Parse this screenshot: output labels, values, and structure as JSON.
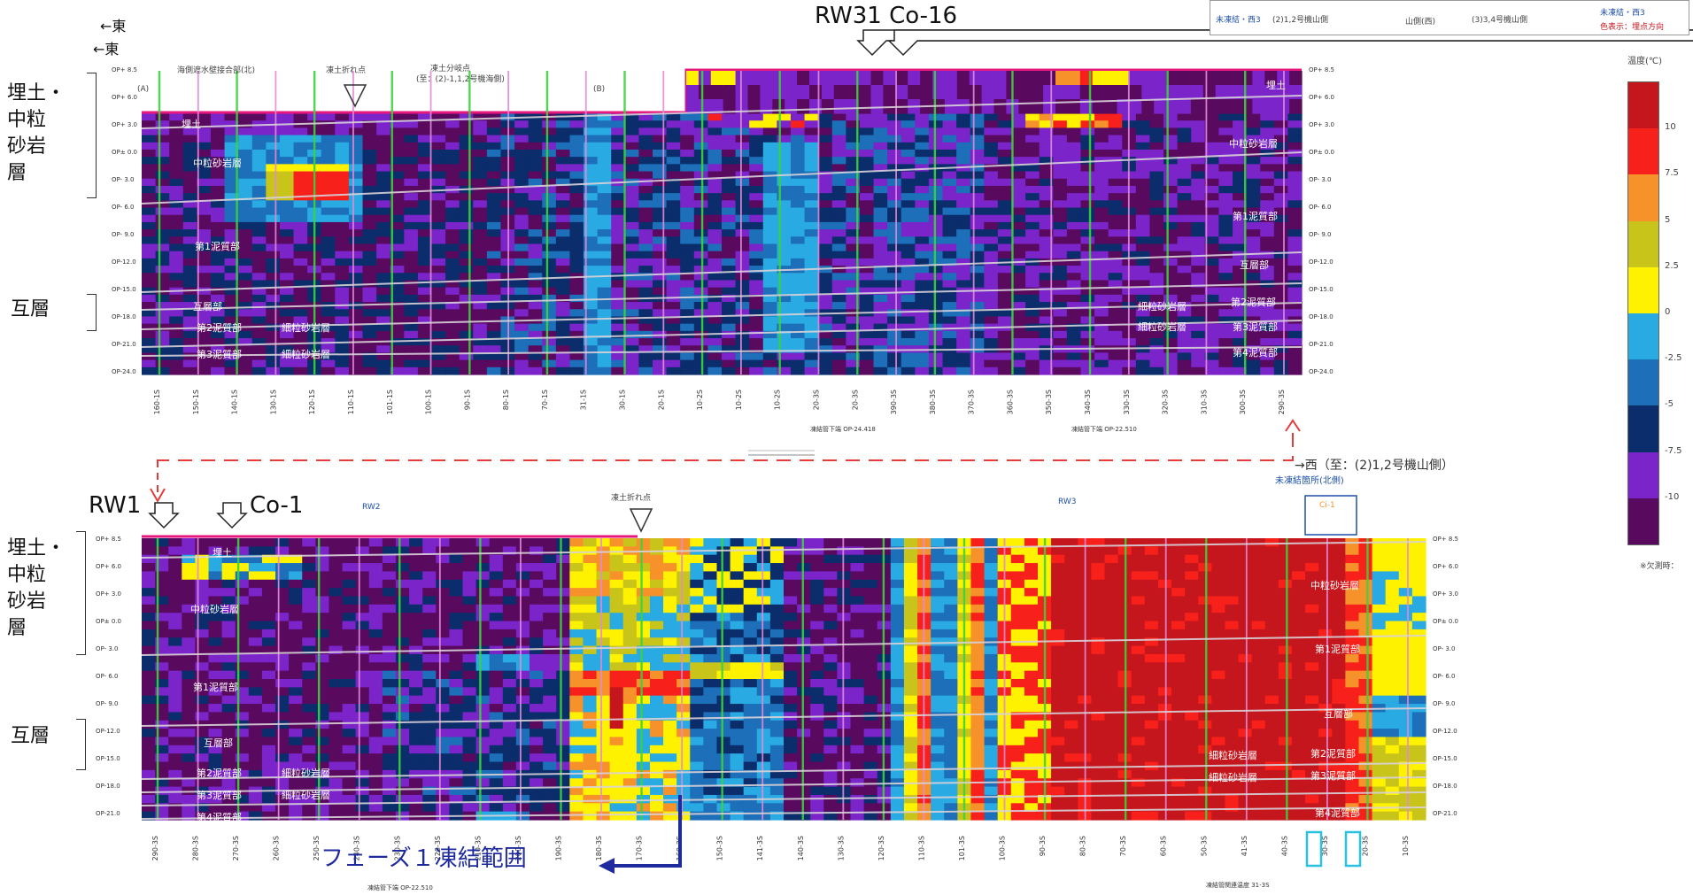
{
  "top": {
    "east_label_1": "←東",
    "east_label_2": "←東",
    "markers_label": "RW31 Co-16",
    "strata_left": [
      "埋土・",
      "中粒",
      "砂岩",
      "層"
    ],
    "alternation_label": "互層",
    "points": {
      "A": "(A)",
      "B": "(B)"
    },
    "annot_kaigan": "海側遮水壁接合部(北)",
    "annot_fill_break": "凍土折れ点",
    "annot_fill_branch": "凍土分岐点",
    "annot_fill_branch_sub": "(至：(2)-1,1,2号機海側)",
    "strata_in_panel": [
      "埋土",
      "中粒砂岩層",
      "第1泥質部",
      "互層部",
      "第2泥質部",
      "細粒砂岩層",
      "第3泥質部",
      "細粒砂岩層"
    ],
    "strata_right": [
      "埋土",
      "中粒砂岩層",
      "第1泥質部",
      "互層部",
      "細粒砂岩層",
      "第2泥質部",
      "細粒砂岩層",
      "第3泥質部",
      "第4泥質部"
    ],
    "depth_ticks": [
      "OP+ 8.5",
      "OP+ 6.0",
      "OP+ 3.0",
      "OP± 0.0",
      "OP- 3.0",
      "OP- 6.0",
      "OP- 9.0",
      "OP-12.0",
      "OP-15.0",
      "OP-18.0",
      "OP-21.0",
      "OP-24.0"
    ],
    "columns": [
      "160-1S",
      "150-1S",
      "140-1S",
      "130-1S",
      "120-1S",
      "110-1S",
      "101-1S",
      "100-1S",
      "90-1S",
      "80-1S",
      "70-1S",
      "31-1S",
      "30-1S",
      "20-1S",
      "10-2S",
      "10-2S",
      "10-2S",
      "20-3S",
      "20-3S",
      "390-3S",
      "380-3S",
      "370-3S",
      "360-3S",
      "350-3S",
      "340-3S",
      "330-3S",
      "320-3S",
      "310-3S",
      "300-3S",
      "290-3S"
    ],
    "bottom_notes": [
      "凍結管下端 OP-24.418",
      "凍結管下端 OP-22.510"
    ]
  },
  "bottom": {
    "rw1_label": "RW1",
    "co1_label": "Co-1",
    "west_label": "→西（至：(2)1,2号機山側）",
    "unfrozen_label": "未凍結箇所(北側)",
    "strata_left": [
      "埋土・",
      "中粒",
      "砂岩",
      "層"
    ],
    "alternation_label": "互層",
    "annot_fill_break": "凍土折れ点",
    "rw2": "RW2",
    "rw3": "RW3",
    "ci": "Ci-1",
    "strata_in_panel": [
      "埋土",
      "中粒砂岩層",
      "第1泥質部",
      "互層部",
      "第2泥質部",
      "細粒砂岩層",
      "第3泥質部",
      "細粒砂岩層",
      "第4泥質部"
    ],
    "strata_right": [
      "中粒砂岩層",
      "第1泥質部",
      "互層部",
      "細粒砂岩層",
      "第2泥質部",
      "細粒砂岩層",
      "第3泥質部",
      "第4泥質部"
    ],
    "depth_ticks": [
      "OP+ 8.5",
      "OP+ 6.0",
      "OP+ 3.0",
      "OP± 0.0",
      "OP- 3.0",
      "OP- 6.0",
      "OP- 9.0",
      "OP-12.0",
      "OP-15.0",
      "OP-18.0",
      "OP-21.0"
    ],
    "columns": [
      "290-3S",
      "280-3S",
      "270-3S",
      "260-3S",
      "250-3S",
      "240-3S",
      "230-3S",
      "220-3S",
      "210-3S",
      "200-3S",
      "190-3S",
      "180-3S",
      "170-3S",
      "160-3S",
      "150-3S",
      "141-3S",
      "140-3S",
      "130-3S",
      "120-3S",
      "110-3S",
      "101-3S",
      "100-3S",
      "90-3S",
      "80-3S",
      "70-3S",
      "60-3S",
      "50-3S",
      "41-3S",
      "40-3S",
      "30-3S",
      "20-3S",
      "10-3S"
    ],
    "phase_label": "フェーズ１凍結範囲",
    "bottom_notes": [
      "凍結管下端 OP-22.510",
      "凍結管関連温度 31-3S"
    ]
  },
  "legend": {
    "top_box_left": "未凍結・西3",
    "top_box_1": "(2)1,2号機山側",
    "top_box_2": "山側(西)",
    "top_box_3": "(3)3,4号機山側",
    "top_box_right": "未凍結・西3",
    "top_box_note": "色表示：埋点方向",
    "unit": "温度(℃)",
    "levels": [
      "10",
      "7.5",
      "5",
      "2.5",
      "0",
      "-2.5",
      "-5",
      "-7.5",
      "-10"
    ],
    "colors": [
      "#c4161c",
      "#f7201a",
      "#f7922b",
      "#c8c41a",
      "#fff200",
      "#29aae2",
      "#1c6fb8",
      "#0b2d6b",
      "#7a24c9",
      "#5a0a5e"
    ],
    "footnote": "※欠測時："
  }
}
